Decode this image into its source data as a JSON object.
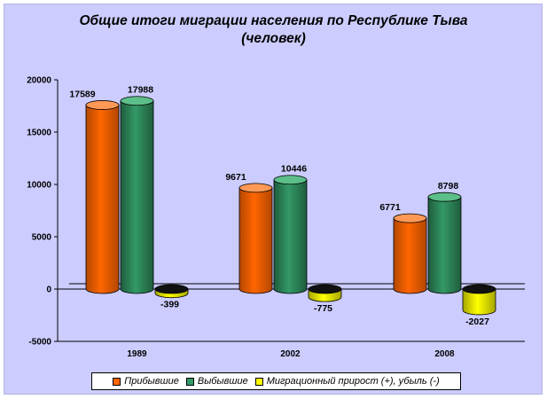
{
  "chart_data": {
    "type": "bar",
    "title_lines": [
      "Общие итоги миграции населения по Республике Тыва",
      "(человек)"
    ],
    "categories": [
      "1989",
      "2002",
      "2008"
    ],
    "series": [
      {
        "name": "Прибывшие",
        "values": [
          17589,
          9671,
          6771
        ],
        "color": "#ff6600",
        "color_dark": "#b34700",
        "color_light": "#ff9955"
      },
      {
        "name": "Выбывшие",
        "values": [
          17988,
          10446,
          8798
        ],
        "color": "#339966",
        "color_dark": "#1f5c3d",
        "color_light": "#5cbf8a"
      },
      {
        "name": "Миграционный прирост (+), убыль (-)",
        "values": [
          -399,
          -775,
          -2027
        ],
        "color": "#ffff00",
        "color_dark": "#a6a600",
        "color_light": "#ffff88"
      }
    ],
    "ylim": [
      -5000,
      20000
    ],
    "yticks": [
      -5000,
      0,
      5000,
      10000,
      15000,
      20000
    ],
    "grid": false,
    "legend_position": "bottom",
    "background_color": "#ccccff"
  }
}
